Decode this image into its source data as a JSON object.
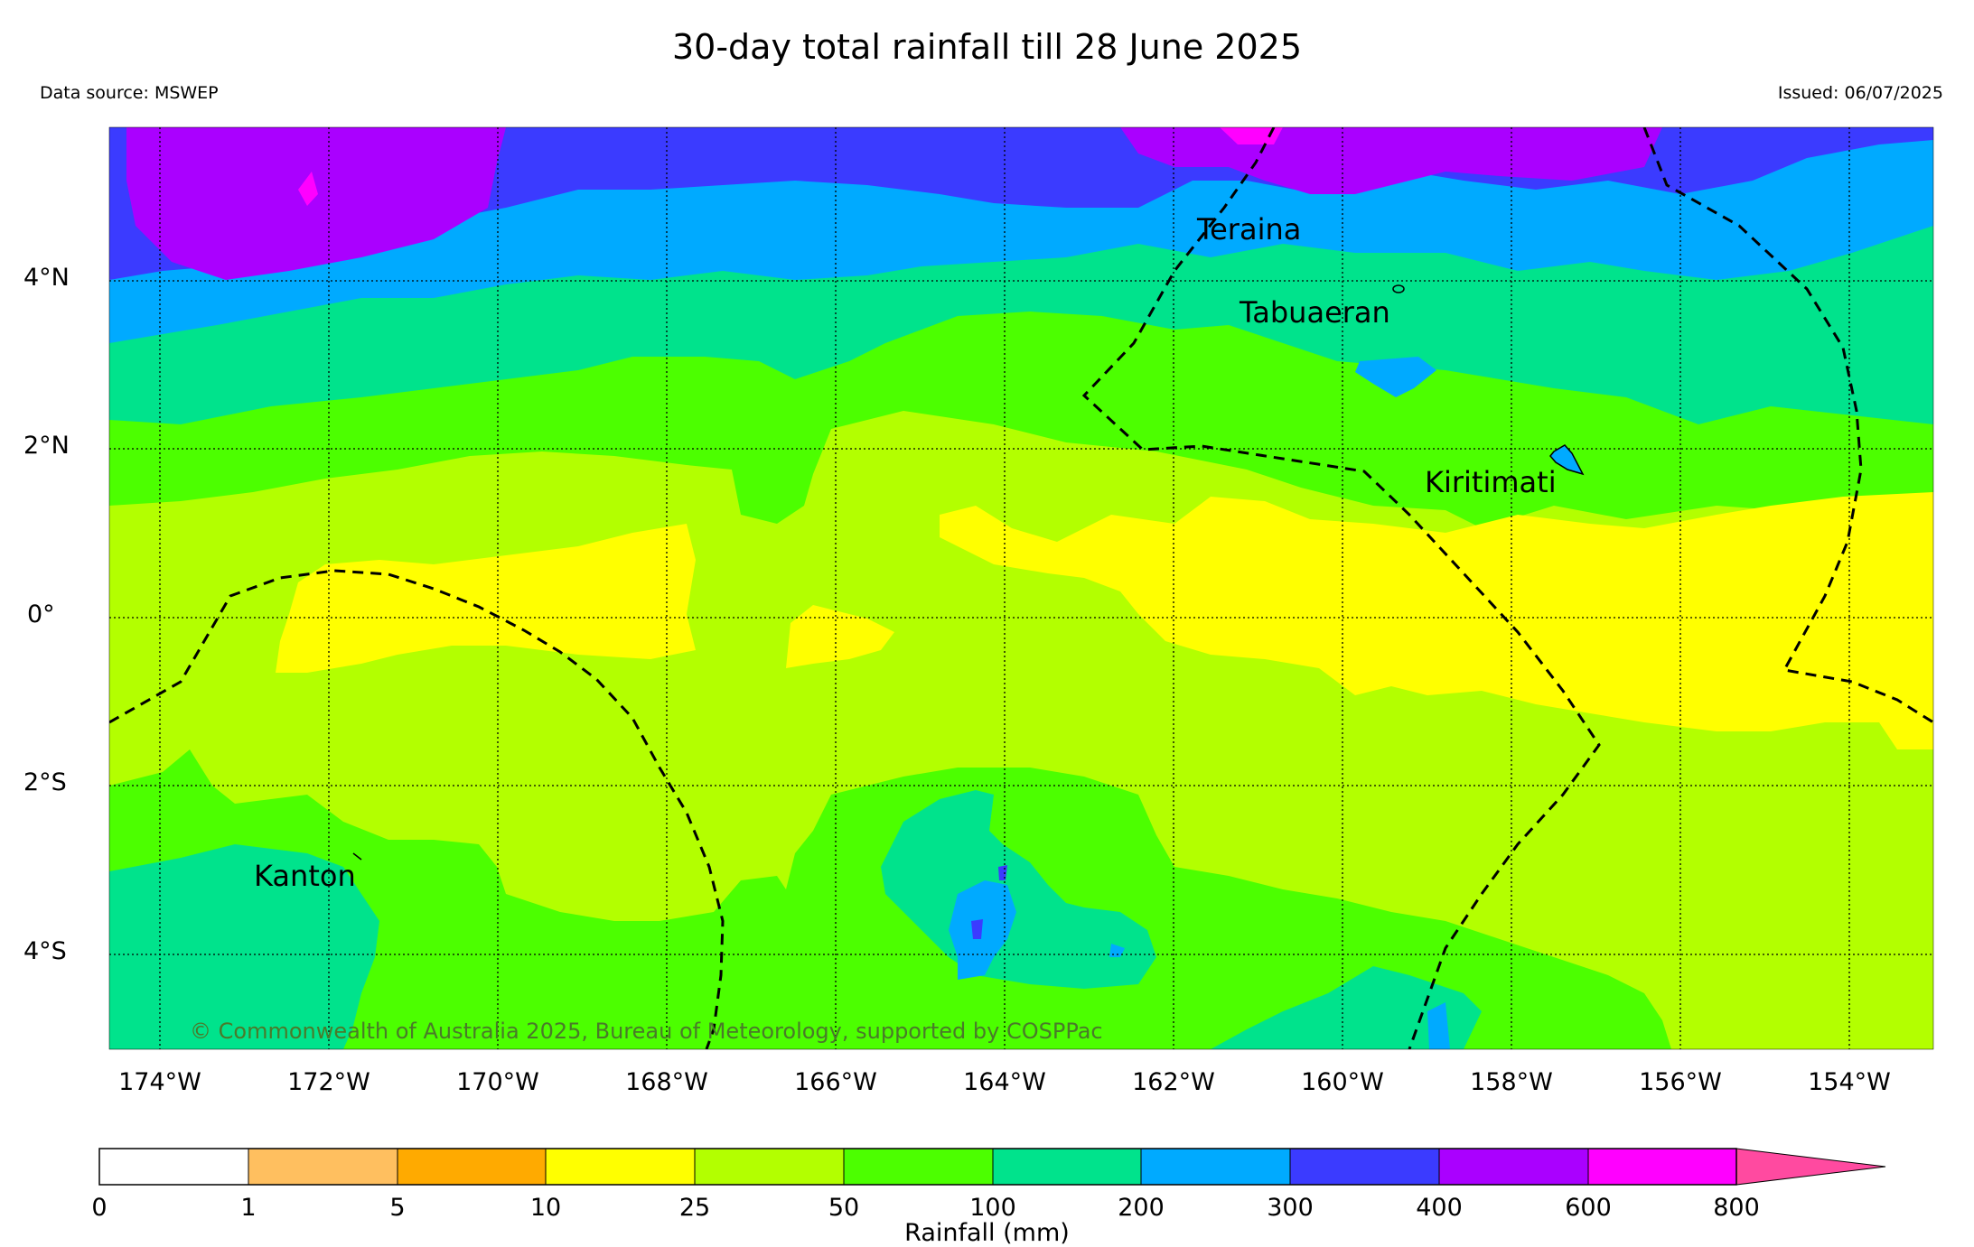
{
  "title": "30-day total rainfall till 28 June 2025",
  "data_source": "Data source: MSWEP",
  "issued": "Issued: 06/07/2025",
  "copyright": "© Commonwealth of Australia 2025, Bureau of Meteorology, supported by COSPPac",
  "lat_labels": [
    "4°N",
    "2°N",
    "0°",
    "2°S",
    "4°S"
  ],
  "lon_labels": [
    "174°W",
    "172°W",
    "170°W",
    "168°W",
    "166°W",
    "164°W",
    "162°W",
    "160°W",
    "158°W",
    "156°W",
    "154°W"
  ],
  "places": [
    "Teraina",
    "Tabuaeran",
    "Kiritimati",
    "Kanton"
  ],
  "colorbar": {
    "ticks": [
      "0",
      "1",
      "5",
      "10",
      "25",
      "50",
      "100",
      "200",
      "300",
      "400",
      "600",
      "800"
    ],
    "label": "Rainfall (mm)",
    "colors": [
      "#ffffff",
      "#ffbf5f",
      "#ffaa00",
      "#ffff00",
      "#b3ff00",
      "#4cff00",
      "#00e38c",
      "#00aaff",
      "#3b3bff",
      "#aa00ff",
      "#ff00ff",
      "#ff4aa0"
    ]
  }
}
